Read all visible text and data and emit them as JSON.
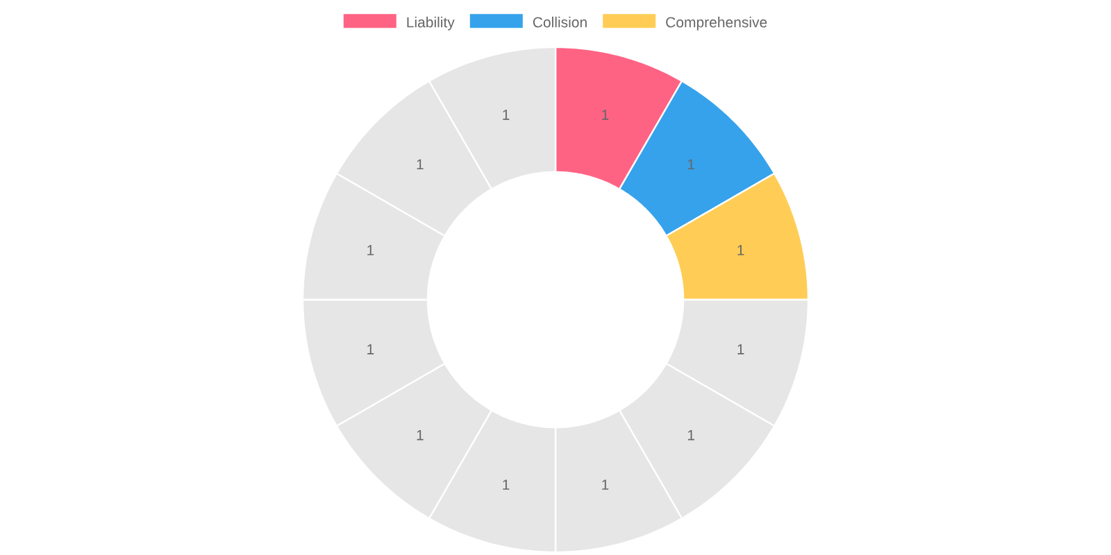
{
  "chart_data": {
    "type": "donut",
    "categories": [
      "Liability",
      "Collision",
      "Comprehensive",
      null,
      null,
      null,
      null,
      null,
      null,
      null,
      null,
      null
    ],
    "values": [
      1,
      1,
      1,
      1,
      1,
      1,
      1,
      1,
      1,
      1,
      1,
      1
    ],
    "colors": [
      "#ff6384",
      "#36a2eb",
      "#ffcd56",
      "#e6e6e6",
      "#e6e6e6",
      "#e6e6e6",
      "#e6e6e6",
      "#e6e6e6",
      "#e6e6e6",
      "#e6e6e6",
      "#e6e6e6",
      "#e6e6e6"
    ],
    "data_labels": true,
    "legend": "top"
  }
}
